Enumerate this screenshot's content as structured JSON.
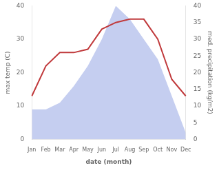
{
  "chart_data": {
    "type": "line",
    "categories": [
      "Jan",
      "Feb",
      "Mar",
      "Apr",
      "May",
      "Jun",
      "Jul",
      "Aug",
      "Sep",
      "Oct",
      "Nov",
      "Dec"
    ],
    "series": [
      {
        "type": "area",
        "axis": "y2",
        "color": "#c5cef0",
        "values": [
          9,
          9,
          11,
          16,
          22,
          30,
          40,
          36,
          30,
          24,
          13,
          2
        ]
      },
      {
        "type": "line",
        "color": "#c0393b",
        "values": [
          13,
          22,
          26,
          26,
          27,
          33,
          35,
          36,
          36,
          30,
          18,
          13
        ]
      }
    ],
    "xlabel": "date (month)",
    "ylabel": "max temp (C)",
    "y2label": "med. precipitation (kg/m2)",
    "ylim": [
      0,
      40
    ],
    "yticks": [
      0,
      10,
      20,
      30,
      40
    ],
    "y2lim": [
      0,
      40
    ],
    "y2ticks": [
      0,
      5,
      10,
      15,
      20,
      25,
      30,
      35,
      40
    ],
    "grid": false
  }
}
